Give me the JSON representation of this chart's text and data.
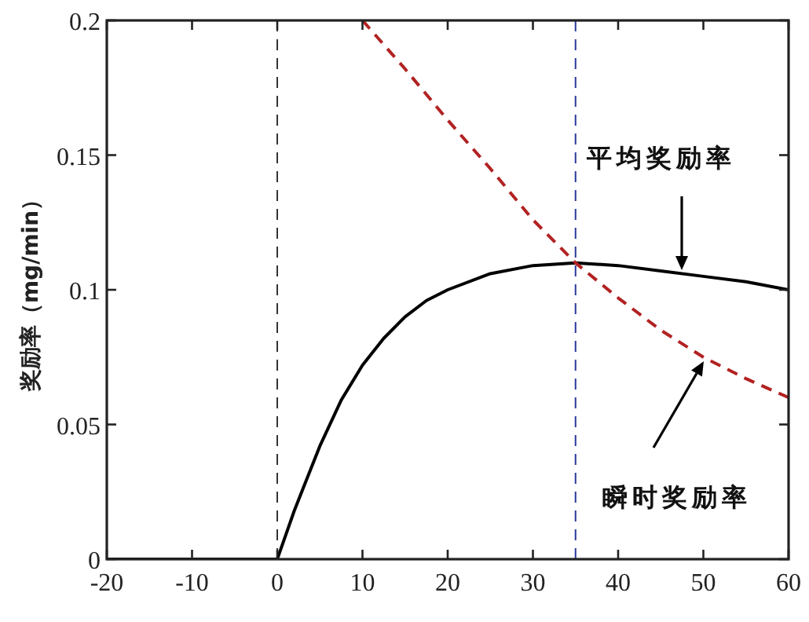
{
  "chart_data": {
    "type": "line",
    "ylabel": "奖励率（mg/min）",
    "xlim": [
      -20,
      60
    ],
    "xticks": [
      -20,
      -10,
      0,
      10,
      20,
      30,
      40,
      50,
      60
    ],
    "ylim": [
      0,
      0.2
    ],
    "yticks": [
      0,
      0.05,
      0.1,
      0.15,
      0.2
    ],
    "grid": false,
    "marker": "none",
    "series": [
      {
        "color": "#000000",
        "line_style": "solid",
        "x": [
          -20,
          0,
          1,
          2,
          3,
          5,
          7.5,
          10,
          12.5,
          15,
          17.5,
          20,
          25,
          30,
          35,
          40,
          45,
          50,
          55,
          60
        ],
        "values": [
          0,
          0,
          0.009,
          0.018,
          0.026,
          0.042,
          0.059,
          0.072,
          0.082,
          0.09,
          0.096,
          0.1,
          0.106,
          0.109,
          0.11,
          0.109,
          0.107,
          0.105,
          0.103,
          0.1
        ]
      },
      {
        "color": "#b22222",
        "line_style": "dashed",
        "x": [
          10,
          15,
          20,
          25,
          30,
          35,
          40,
          45,
          50,
          55,
          60
        ],
        "values": [
          0.2,
          0.182,
          0.163,
          0.145,
          0.126,
          0.11,
          0.097,
          0.085,
          0.075,
          0.067,
          0.06
        ]
      }
    ],
    "ref_lines": [
      {
        "axis": "x",
        "value": 0,
        "color": "#333333",
        "line_style": "dashed"
      },
      {
        "axis": "x",
        "value": 35,
        "color": "#2a3a9a",
        "line_style": "dashed"
      }
    ],
    "annotations": [
      "平均奖励率",
      "瞬时奖励率"
    ]
  }
}
